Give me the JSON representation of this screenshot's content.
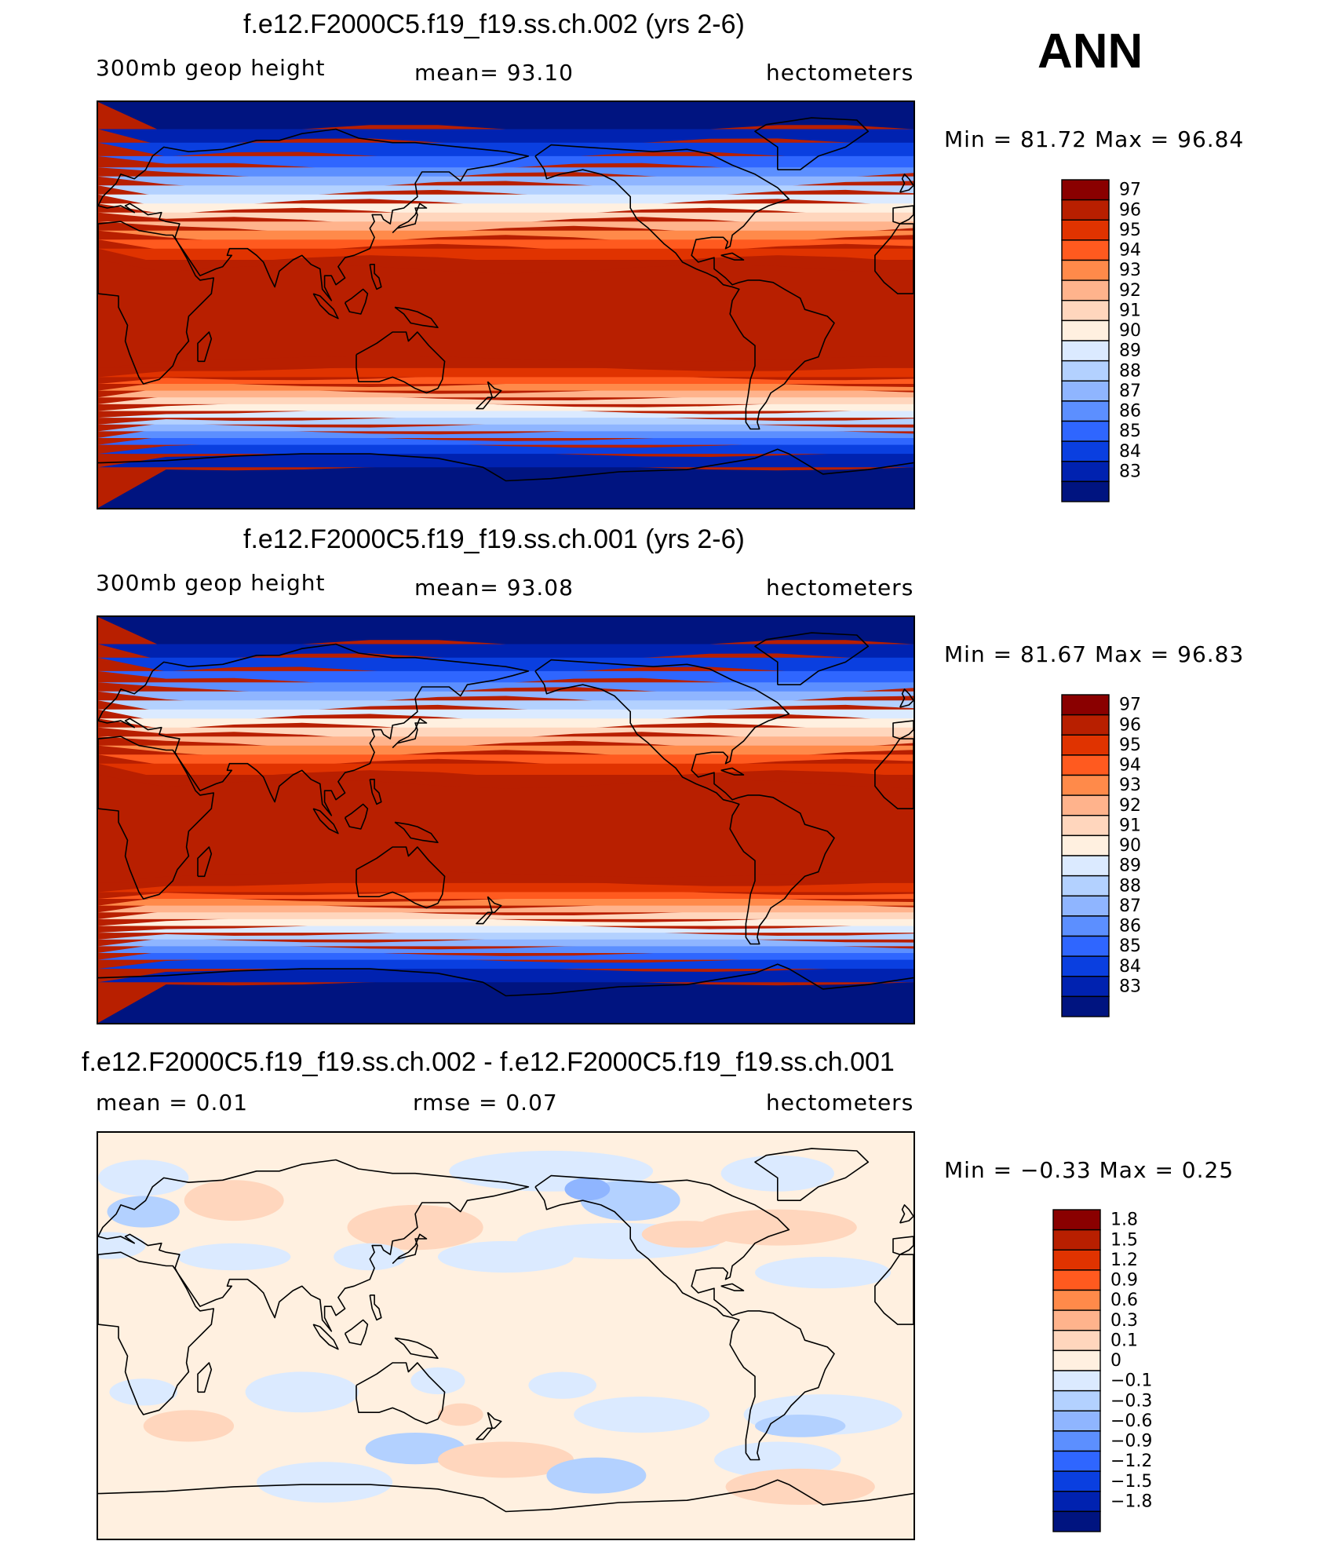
{
  "season": "ANN",
  "panels": [
    {
      "id": "case",
      "title": "f.e12.F2000C5.f19_f19.ss.ch.002 (yrs 2-6)",
      "left_label": "300mb  geop  height",
      "center_label": "mean=   93.10",
      "right_label": "hectometers",
      "stats": "Min =   81.72  Max =   96.84",
      "field": "abs",
      "colorbar": {
        "levels": [
          "97",
          "96",
          "95",
          "94",
          "93",
          "92",
          "91",
          "90",
          "89",
          "88",
          "87",
          "86",
          "85",
          "84",
          "83"
        ],
        "colors": [
          "#8a0000",
          "#b81f00",
          "#e03300",
          "#ff5a1f",
          "#ff8a4a",
          "#ffb38c",
          "#ffd6bd",
          "#fff0e0",
          "#dbeaff",
          "#b3d1ff",
          "#8fb5ff",
          "#5c8fff",
          "#2f66ff",
          "#0a3fe0",
          "#0022b0",
          "#001480"
        ]
      }
    },
    {
      "id": "control",
      "title": "f.e12.F2000C5.f19_f19.ss.ch.001 (yrs 2-6)",
      "left_label": "300mb  geop  height",
      "center_label": "mean=   93.08",
      "right_label": "hectometers",
      "stats": "Min =   81.67  Max =   96.83",
      "field": "abs",
      "colorbar": {
        "levels": [
          "97",
          "96",
          "95",
          "94",
          "93",
          "92",
          "91",
          "90",
          "89",
          "88",
          "87",
          "86",
          "85",
          "84",
          "83"
        ],
        "colors": [
          "#8a0000",
          "#b81f00",
          "#e03300",
          "#ff5a1f",
          "#ff8a4a",
          "#ffb38c",
          "#ffd6bd",
          "#fff0e0",
          "#dbeaff",
          "#b3d1ff",
          "#8fb5ff",
          "#5c8fff",
          "#2f66ff",
          "#0a3fe0",
          "#0022b0",
          "#001480"
        ]
      }
    },
    {
      "id": "diff",
      "title": "f.e12.F2000C5.f19_f19.ss.ch.002 - f.e12.F2000C5.f19_f19.ss.ch.001",
      "left_label": "mean =    0.01",
      "center_label": "rmse =    0.07",
      "right_label": "hectometers",
      "stats": "Min =  −0.33  Max =    0.25",
      "field": "diff",
      "colorbar": {
        "levels": [
          "1.8",
          "1.5",
          "1.2",
          "0.9",
          "0.6",
          "0.3",
          "0.1",
          "0",
          "−0.1",
          "−0.3",
          "−0.6",
          "−0.9",
          "−1.2",
          "−1.5",
          "−1.8"
        ],
        "colors": [
          "#8a0000",
          "#b81f00",
          "#e03300",
          "#ff5a1f",
          "#ff8a4a",
          "#ffb38c",
          "#ffd6bd",
          "#fff0e0",
          "#dbeaff",
          "#b3d1ff",
          "#8fb5ff",
          "#5c8fff",
          "#2f66ff",
          "#0a3fe0",
          "#0022b0",
          "#001480"
        ]
      }
    }
  ]
}
